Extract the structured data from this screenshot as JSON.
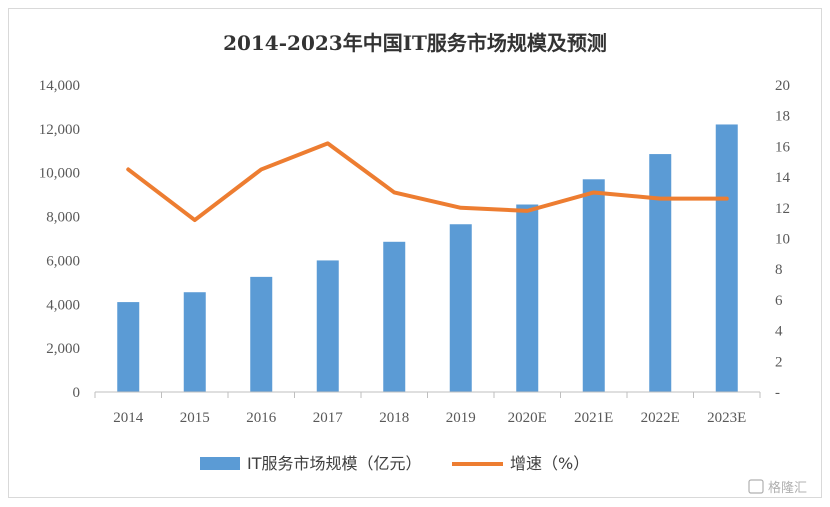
{
  "chart_data": {
    "type": "bar+line",
    "title": "2014-2023年中国IT服务市场规模及预测",
    "categories": [
      "2014",
      "2015",
      "2016",
      "2017",
      "2018",
      "2019",
      "2020E",
      "2021E",
      "2022E",
      "2023E"
    ],
    "series": [
      {
        "name": "IT服务市场规模（亿元）",
        "type": "bar",
        "axis": "left",
        "color": "#5b9bd5",
        "values": [
          4100,
          4550,
          5250,
          6000,
          6850,
          7650,
          8550,
          9700,
          10850,
          12200
        ]
      },
      {
        "name": "增速（%）",
        "type": "line",
        "axis": "right",
        "color": "#ed7d31",
        "values": [
          14.5,
          11.2,
          14.5,
          16.2,
          13.0,
          12.0,
          11.8,
          13.0,
          12.6,
          12.6
        ]
      }
    ],
    "y_left": {
      "ylim": [
        0,
        14000
      ],
      "ticks": [
        "0",
        "2,000",
        "4,000",
        "6,000",
        "8,000",
        "10,000",
        "12,000",
        "14,000"
      ]
    },
    "y_right": {
      "ylim": [
        0,
        20
      ],
      "ticks": [
        "-",
        "2",
        "4",
        "6",
        "8",
        "10",
        "12",
        "14",
        "16",
        "18",
        "20"
      ]
    },
    "grid": false,
    "legend": "bottom"
  },
  "watermark": "格隆汇"
}
